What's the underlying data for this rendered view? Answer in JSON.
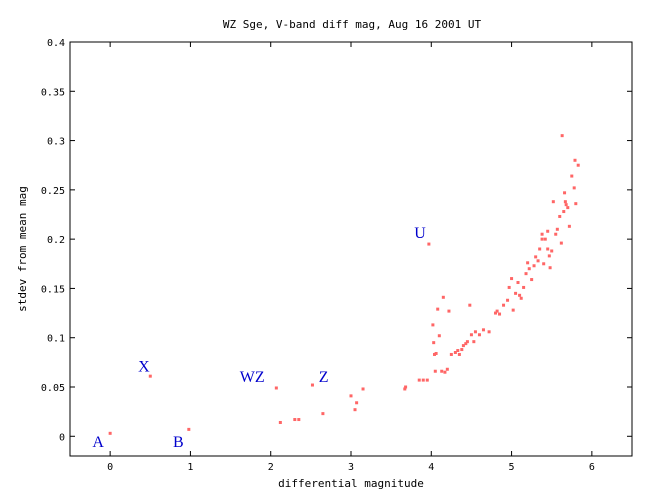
{
  "chart_data": {
    "type": "scatter",
    "title": "WZ Sge, V-band diff mag, Aug 16 2001 UT",
    "xlabel": "differential magnitude",
    "ylabel": "stdev from mean mag",
    "xlim": [
      -0.5,
      6.5
    ],
    "ylim": [
      -0.02,
      0.4
    ],
    "x_ticks": [
      "0",
      "1",
      "2",
      "3",
      "4",
      "5",
      "6"
    ],
    "y_ticks": [
      "0",
      "0.05",
      "0.1",
      "0.15",
      "0.2",
      "0.25",
      "0.3",
      "0.35",
      "0.4"
    ],
    "grid": false,
    "point_color": "#ff6666",
    "label_color": "#0000cc",
    "annotations": [
      {
        "text": "A",
        "x": -0.15,
        "y": -0.005
      },
      {
        "text": "X",
        "x": 0.42,
        "y": 0.072
      },
      {
        "text": "B",
        "x": 0.85,
        "y": -0.005
      },
      {
        "text": "WZ",
        "x": 1.77,
        "y": 0.061
      },
      {
        "text": "Z",
        "x": 2.66,
        "y": 0.061
      },
      {
        "text": "U",
        "x": 3.86,
        "y": 0.207
      }
    ],
    "points": [
      [
        0.0,
        0.003
      ],
      [
        0.5,
        0.061
      ],
      [
        0.98,
        0.007
      ],
      [
        2.07,
        0.049
      ],
      [
        2.12,
        0.014
      ],
      [
        2.3,
        0.017
      ],
      [
        2.35,
        0.017
      ],
      [
        2.52,
        0.052
      ],
      [
        2.65,
        0.023
      ],
      [
        3.0,
        0.041
      ],
      [
        3.05,
        0.027
      ],
      [
        3.07,
        0.034
      ],
      [
        3.15,
        0.048
      ],
      [
        3.67,
        0.048
      ],
      [
        3.68,
        0.05
      ],
      [
        3.85,
        0.057
      ],
      [
        3.9,
        0.057
      ],
      [
        3.95,
        0.057
      ],
      [
        3.97,
        0.195
      ],
      [
        4.02,
        0.113
      ],
      [
        4.03,
        0.095
      ],
      [
        4.04,
        0.083
      ],
      [
        4.05,
        0.066
      ],
      [
        4.06,
        0.084
      ],
      [
        4.08,
        0.129
      ],
      [
        4.1,
        0.102
      ],
      [
        4.13,
        0.066
      ],
      [
        4.15,
        0.141
      ],
      [
        4.17,
        0.065
      ],
      [
        4.2,
        0.068
      ],
      [
        4.22,
        0.127
      ],
      [
        4.25,
        0.083
      ],
      [
        4.3,
        0.085
      ],
      [
        4.33,
        0.087
      ],
      [
        4.35,
        0.083
      ],
      [
        4.38,
        0.088
      ],
      [
        4.4,
        0.092
      ],
      [
        4.43,
        0.094
      ],
      [
        4.45,
        0.096
      ],
      [
        4.48,
        0.133
      ],
      [
        4.5,
        0.103
      ],
      [
        4.53,
        0.096
      ],
      [
        4.55,
        0.106
      ],
      [
        4.6,
        0.103
      ],
      [
        4.65,
        0.108
      ],
      [
        4.72,
        0.106
      ],
      [
        4.8,
        0.125
      ],
      [
        4.82,
        0.127
      ],
      [
        4.85,
        0.124
      ],
      [
        4.9,
        0.133
      ],
      [
        4.95,
        0.138
      ],
      [
        4.97,
        0.151
      ],
      [
        5.0,
        0.16
      ],
      [
        5.02,
        0.128
      ],
      [
        5.05,
        0.145
      ],
      [
        5.08,
        0.156
      ],
      [
        5.1,
        0.143
      ],
      [
        5.12,
        0.14
      ],
      [
        5.15,
        0.151
      ],
      [
        5.18,
        0.165
      ],
      [
        5.2,
        0.176
      ],
      [
        5.22,
        0.17
      ],
      [
        5.25,
        0.159
      ],
      [
        5.28,
        0.173
      ],
      [
        5.3,
        0.182
      ],
      [
        5.33,
        0.178
      ],
      [
        5.35,
        0.19
      ],
      [
        5.38,
        0.2
      ],
      [
        5.4,
        0.175
      ],
      [
        5.42,
        0.2
      ],
      [
        5.45,
        0.208
      ],
      [
        5.48,
        0.171
      ],
      [
        5.5,
        0.188
      ],
      [
        5.52,
        0.238
      ],
      [
        5.55,
        0.205
      ],
      [
        5.57,
        0.21
      ],
      [
        5.6,
        0.223
      ],
      [
        5.62,
        0.196
      ],
      [
        5.65,
        0.228
      ],
      [
        5.67,
        0.238
      ],
      [
        5.7,
        0.232
      ],
      [
        5.72,
        0.213
      ],
      [
        5.75,
        0.264
      ],
      [
        5.78,
        0.252
      ],
      [
        5.8,
        0.236
      ],
      [
        5.63,
        0.305
      ],
      [
        5.66,
        0.247
      ],
      [
        5.68,
        0.235
      ],
      [
        5.83,
        0.275
      ],
      [
        5.79,
        0.28
      ],
      [
        5.45,
        0.19
      ],
      [
        5.38,
        0.205
      ],
      [
        5.47,
        0.183
      ]
    ]
  }
}
